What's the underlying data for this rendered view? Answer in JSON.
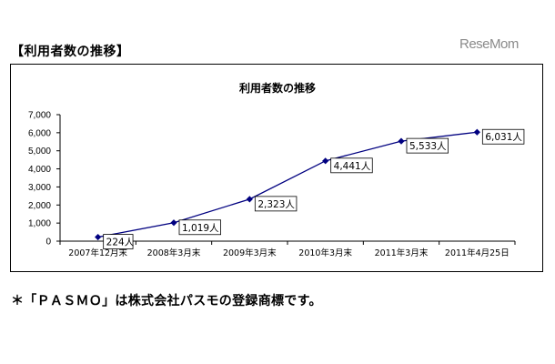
{
  "heading": "【利用者数の推移】",
  "watermark": "ReseMom",
  "footnote": "＊「ＰＡＳＭＯ」は株式会社パスモの登録商標です。",
  "chart_data": {
    "type": "line",
    "title": "利用者数の推移",
    "xlabel": "",
    "ylabel": "",
    "categories": [
      "2007年12月末",
      "2008年3月末",
      "2009年3月末",
      "2010年3月末",
      "2011年3月末",
      "2011年4月25日"
    ],
    "values": [
      224,
      1019,
      2323,
      4441,
      5533,
      6031
    ],
    "data_labels": [
      "224人",
      "1,019人",
      "2,323人",
      "4,441人",
      "5,533人",
      "6,031人"
    ],
    "ylim": [
      0,
      7000
    ],
    "yticks": [
      "0",
      "1,000",
      "2,000",
      "3,000",
      "4,000",
      "5,000",
      "6,000",
      "7,000"
    ],
    "grid": false,
    "legend": "none",
    "line_color": "#000080"
  }
}
